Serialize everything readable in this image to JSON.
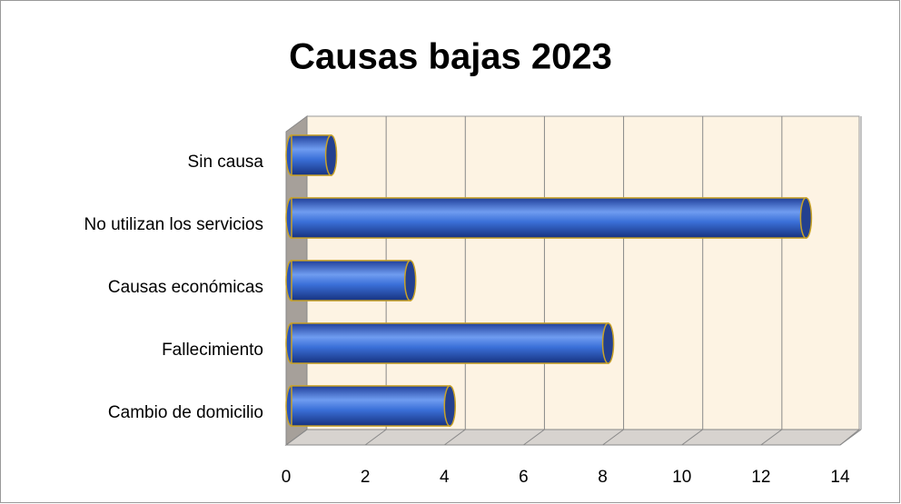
{
  "chart_data": {
    "type": "bar",
    "orientation": "horizontal",
    "title": "Causas bajas 2023",
    "categories": [
      "Sin causa",
      "No utilizan los servicios",
      "Causas económicas",
      "Fallecimiento",
      "Cambio de domicilio"
    ],
    "values": [
      1,
      13,
      3,
      8,
      4
    ],
    "color": "#3a6fd8",
    "xlim": [
      0,
      14
    ],
    "xticks": [
      0,
      2,
      4,
      6,
      8,
      10,
      12,
      14
    ],
    "grid": true
  }
}
